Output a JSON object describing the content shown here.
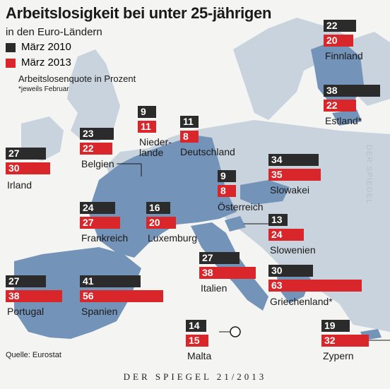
{
  "title": "Arbeitslosigkeit bei unter 25-jährigen",
  "subtitle": "in den Euro-Ländern",
  "legend": [
    {
      "label": "März 2010",
      "color": "#2b2b2b"
    },
    {
      "label": "März 2013",
      "color": "#d8262b"
    }
  ],
  "unit_label": "Arbeitslosenquote in Prozent",
  "footnote": "*jeweils Februar",
  "source": "Quelle: Eurostat",
  "footer": "DER SPIEGEL 21/2013",
  "watermark": "DER SPIEGEL",
  "chart_data": {
    "type": "bar",
    "series": [
      {
        "name": "März 2010"
      },
      {
        "name": "März 2013"
      }
    ],
    "countries": [
      {
        "name": "Finnland",
        "v2010": 22,
        "v2013": 20
      },
      {
        "name": "Estland*",
        "v2010": 38,
        "v2013": 22
      },
      {
        "name": "Niederlande",
        "v2010": 9,
        "v2013": 11
      },
      {
        "name": "Deutschland",
        "v2010": 11,
        "v2013": 8
      },
      {
        "name": "Belgien",
        "v2010": 23,
        "v2013": 22
      },
      {
        "name": "Irland",
        "v2010": 27,
        "v2013": 30
      },
      {
        "name": "Slowakei",
        "v2010": 34,
        "v2013": 35
      },
      {
        "name": "Österreich",
        "v2010": 9,
        "v2013": 8
      },
      {
        "name": "Frankreich",
        "v2010": 24,
        "v2013": 27
      },
      {
        "name": "Luxemburg",
        "v2010": 16,
        "v2013": 20
      },
      {
        "name": "Slowenien",
        "v2010": 13,
        "v2013": 24
      },
      {
        "name": "Italien",
        "v2010": 27,
        "v2013": 38
      },
      {
        "name": "Griechenland*",
        "v2010": 30,
        "v2013": 63
      },
      {
        "name": "Portugal",
        "v2010": 27,
        "v2013": 38
      },
      {
        "name": "Spanien",
        "v2010": 41,
        "v2013": 56
      },
      {
        "name": "Malta",
        "v2010": 14,
        "v2013": 15
      },
      {
        "name": "Zypern",
        "v2010": 19,
        "v2013": 32
      }
    ]
  }
}
